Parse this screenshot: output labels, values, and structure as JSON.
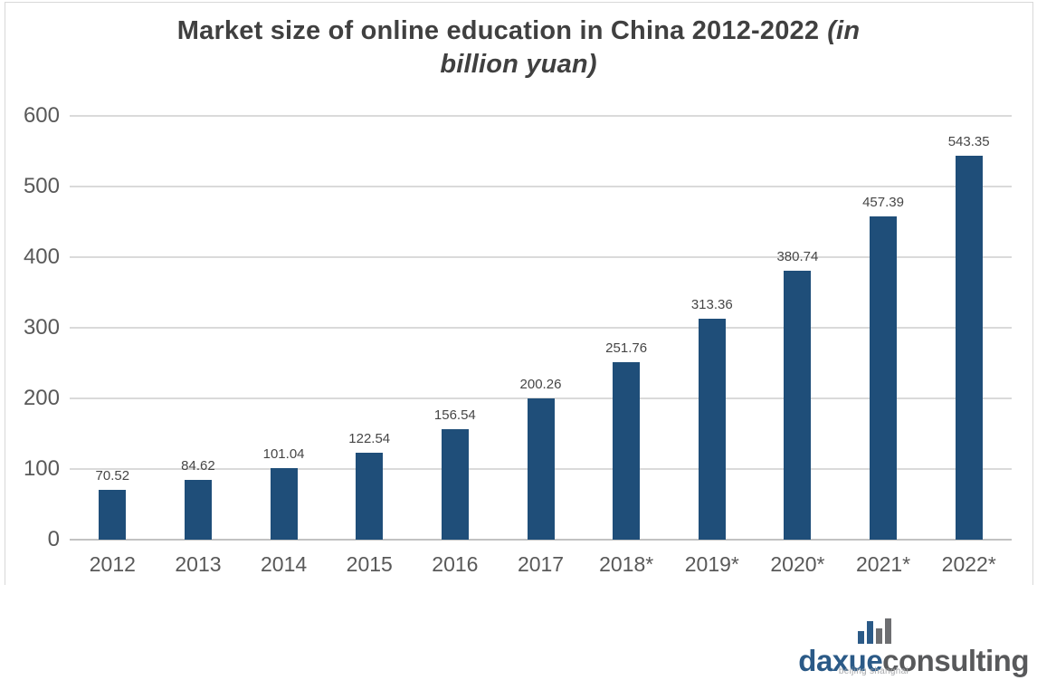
{
  "title": {
    "line1_main": "Market size of online education in China 2012-2022",
    "line1_italic": "(in",
    "line2_italic": "billion yuan)"
  },
  "chart_data": {
    "type": "bar",
    "title": "Market size of online education in China 2012-2022 (in billion yuan)",
    "categories": [
      "2012",
      "2013",
      "2014",
      "2015",
      "2016",
      "2017",
      "2018*",
      "2019*",
      "2020*",
      "2021*",
      "2022*"
    ],
    "values": [
      70.52,
      84.62,
      101.04,
      122.54,
      156.54,
      200.26,
      251.76,
      313.36,
      380.74,
      457.39,
      543.35
    ],
    "value_labels": [
      "70.52",
      "84.62",
      "101.04",
      "122.54",
      "156.54",
      "200.26",
      "251.76",
      "313.36",
      "380.74",
      "457.39",
      "543.35"
    ],
    "xlabel": "",
    "ylabel": "",
    "ylim": [
      0,
      600
    ],
    "yticks": [
      600,
      500,
      400,
      300,
      200,
      100,
      0
    ],
    "grid": true,
    "legend": false,
    "bar_color": "#1F4E79",
    "gridline_color": "#DADADA",
    "axis_line_color": "#C2C2C2",
    "axis_label_color": "#595959",
    "data_label_color": "#464646",
    "title_color": "#404040"
  },
  "logo": {
    "brand_left": "daxue",
    "brand_right": "consulting",
    "subtext": "beijing shanghai",
    "brand_left_color": "#2B5A87",
    "brand_right_color": "#58595B",
    "icon_bar_colors": [
      "#2B5A87",
      "#2B5A87",
      "#6D6E71",
      "#6D6E71"
    ],
    "icon_bar_heights": [
      14,
      25,
      17,
      28
    ]
  }
}
